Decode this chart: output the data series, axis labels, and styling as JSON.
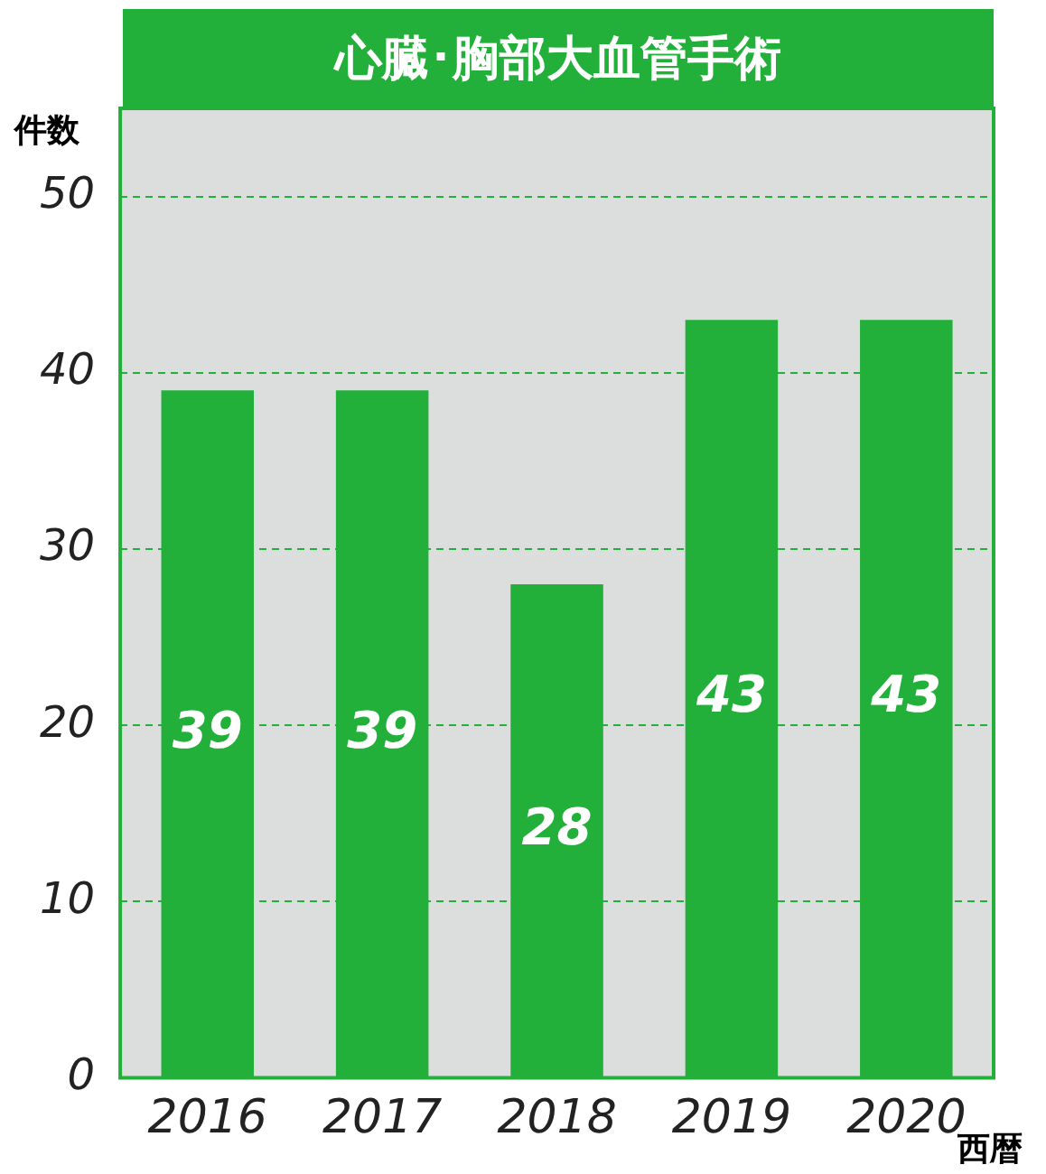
{
  "chart_data": {
    "type": "bar",
    "title": "心臓･胸部大血管手術",
    "ylabel": "件数",
    "xlabel": "西暦",
    "categories": [
      "2016",
      "2017",
      "2018",
      "2019",
      "2020"
    ],
    "values": [
      39,
      39,
      28,
      43,
      43
    ],
    "color": "#22b03a",
    "ylim": [
      0,
      55
    ],
    "yticks": [
      0,
      10,
      20,
      30,
      40,
      50
    ],
    "grid": "y",
    "legend": false,
    "data_labels": true
  }
}
